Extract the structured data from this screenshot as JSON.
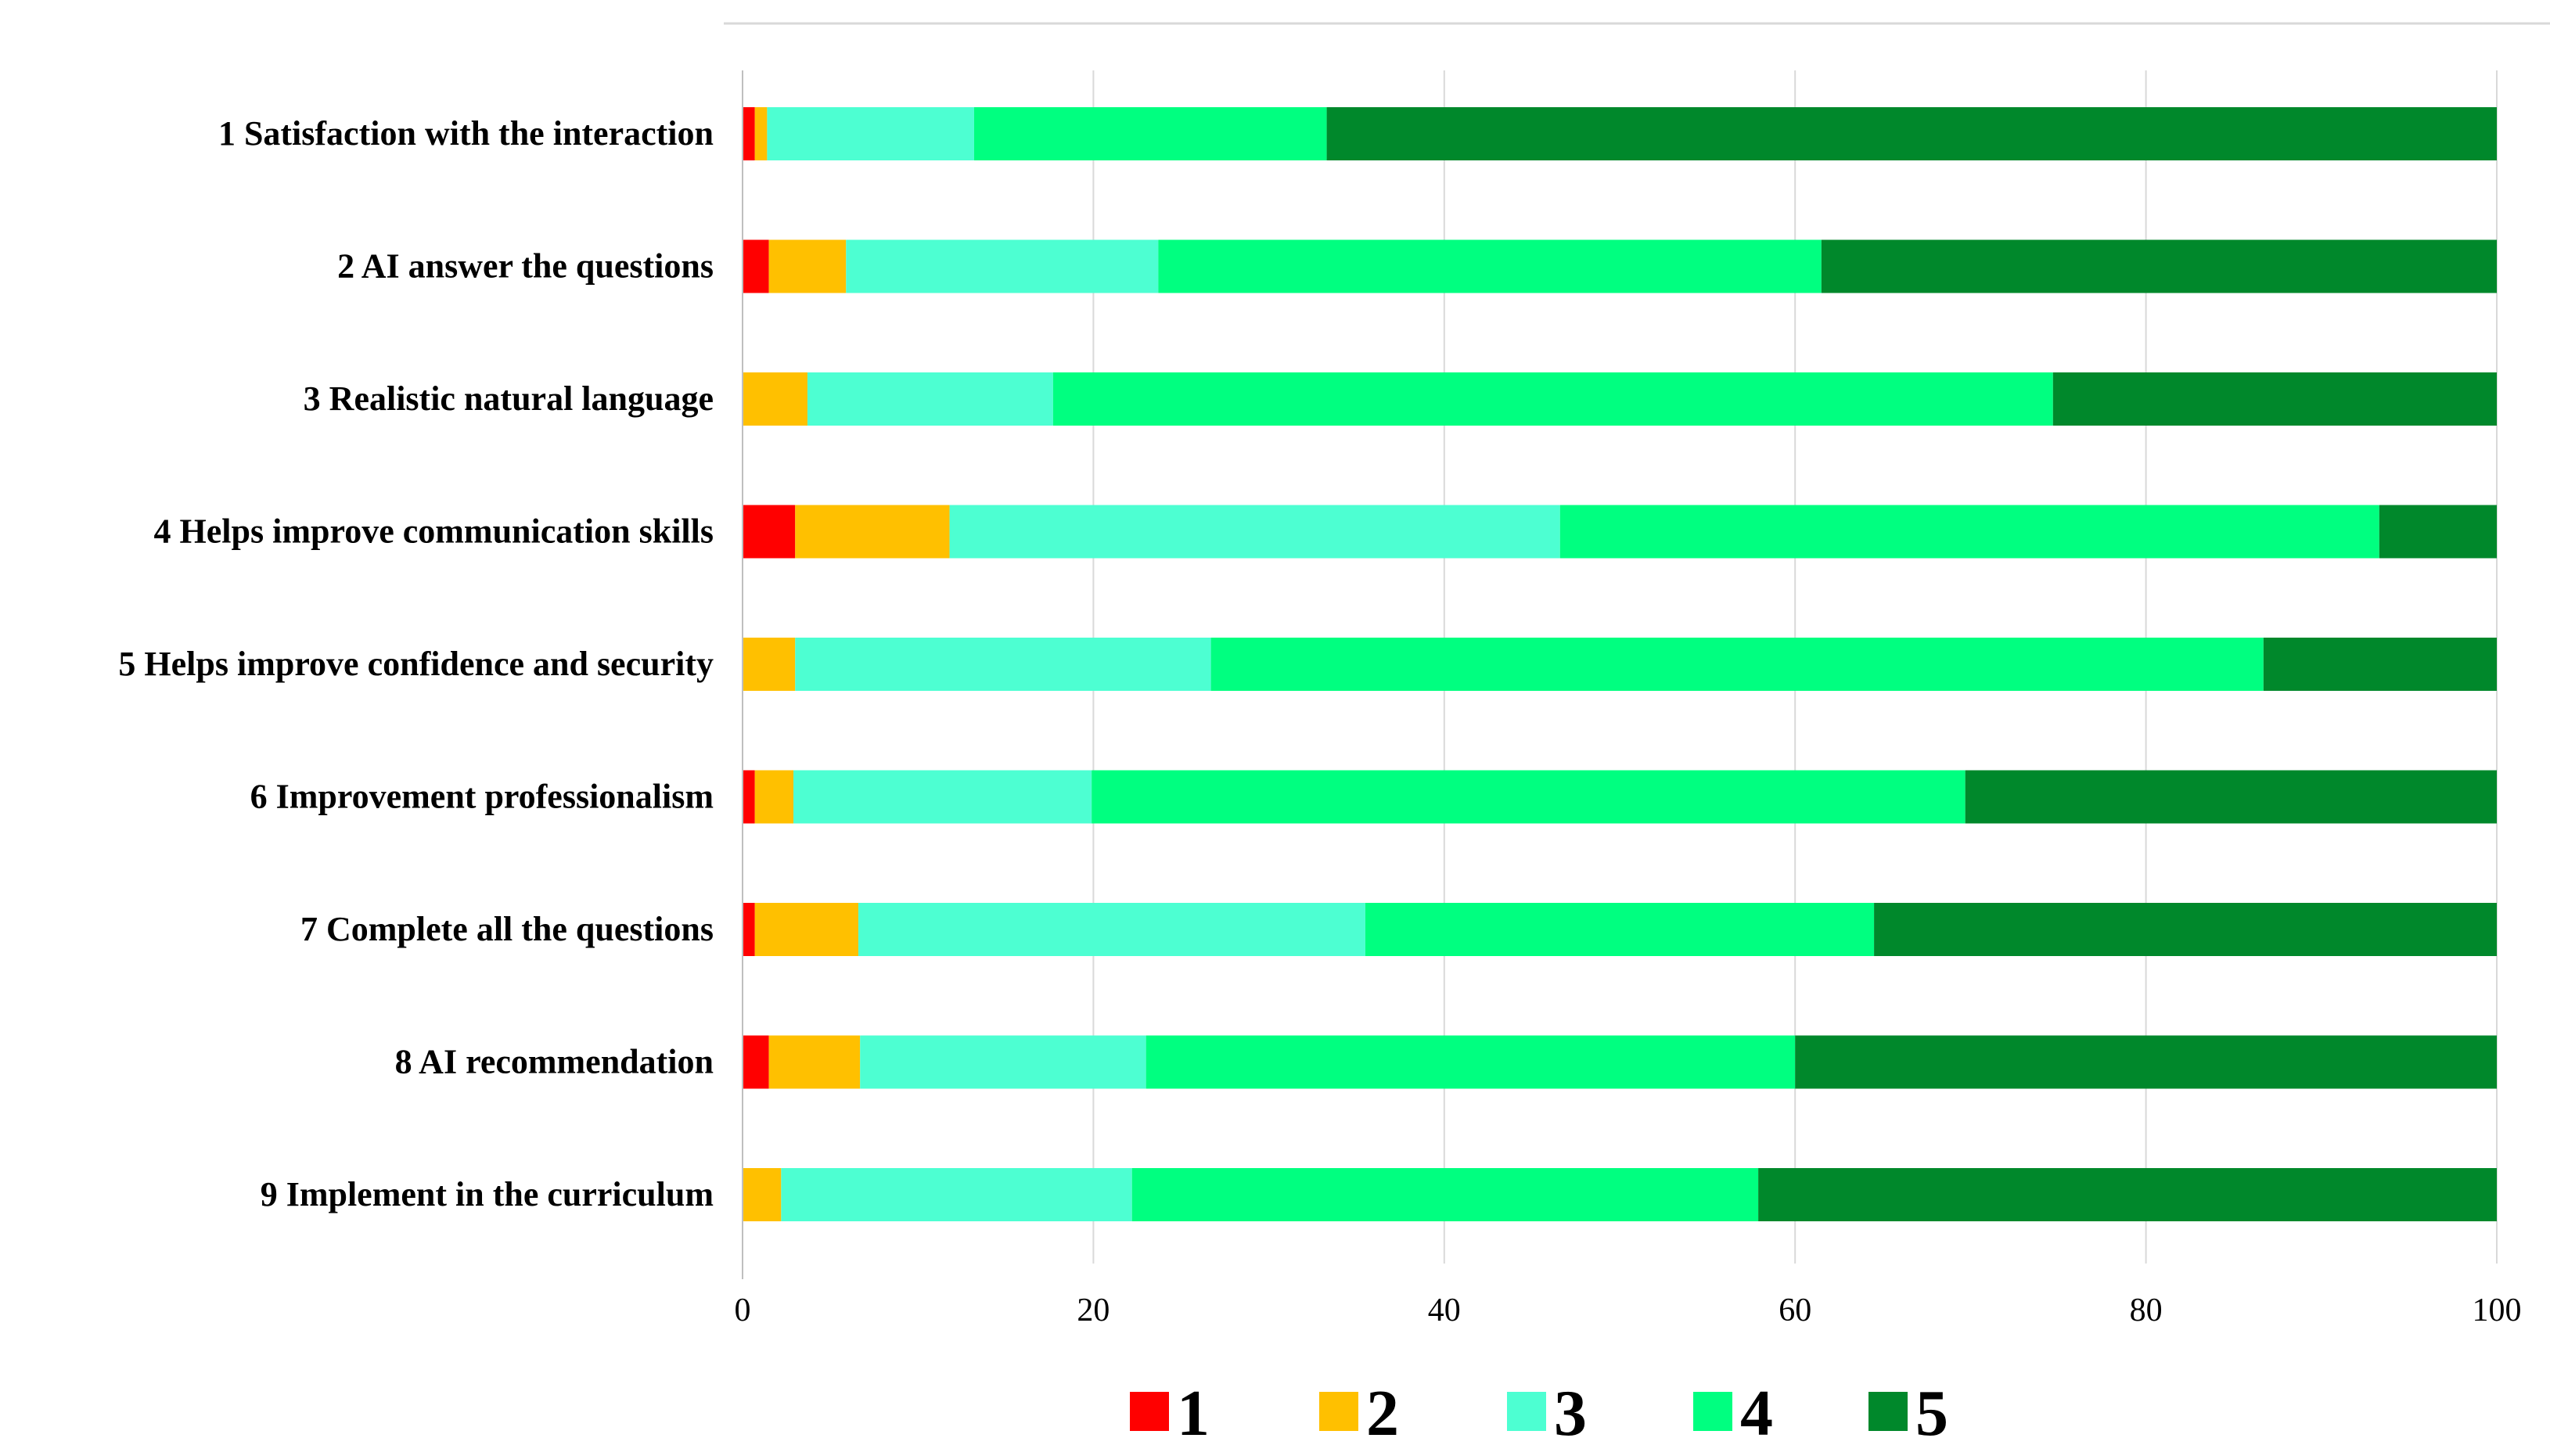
{
  "chart_data": {
    "type": "bar",
    "orientation": "horizontal",
    "stacked": true,
    "title": "",
    "xlabel": "",
    "ylabel": "",
    "xlim": [
      0,
      100
    ],
    "xticks": [
      0,
      20,
      40,
      60,
      80,
      100
    ],
    "grid": "vertical",
    "legend_position": "bottom",
    "categories": [
      "1 Satisfaction with the interaction",
      "2 AI answer the questions",
      "3 Realistic natural language",
      "4 Helps improve communication skills",
      "5 Helps improve confidence and security",
      "6 Improvement professionalism",
      "7 Complete all the questions",
      "8 AI recommendation",
      "9 Implement in the curriculum"
    ],
    "series": [
      {
        "name": "1",
        "color": "#ff0000",
        "values": [
          0.7,
          1.5,
          0,
          3.0,
          0,
          0.7,
          0.7,
          1.5,
          0
        ]
      },
      {
        "name": "2",
        "color": "#ffc000",
        "values": [
          0.7,
          4.4,
          3.7,
          8.8,
          3.0,
          2.2,
          5.9,
          5.2,
          2.2
        ]
      },
      {
        "name": "3",
        "color": "#4dffd2",
        "values": [
          11.8,
          17.8,
          14.0,
          34.8,
          23.7,
          17.0,
          28.9,
          16.3,
          20.0
        ]
      },
      {
        "name": "4",
        "color": "#00ff80",
        "values": [
          20.1,
          37.8,
          57.0,
          46.7,
          60.0,
          49.8,
          29.0,
          37.0,
          35.7
        ]
      },
      {
        "name": "5",
        "color": "#00882b",
        "values": [
          66.7,
          38.5,
          25.3,
          6.7,
          13.3,
          30.3,
          35.5,
          40.0,
          42.1
        ]
      }
    ]
  }
}
